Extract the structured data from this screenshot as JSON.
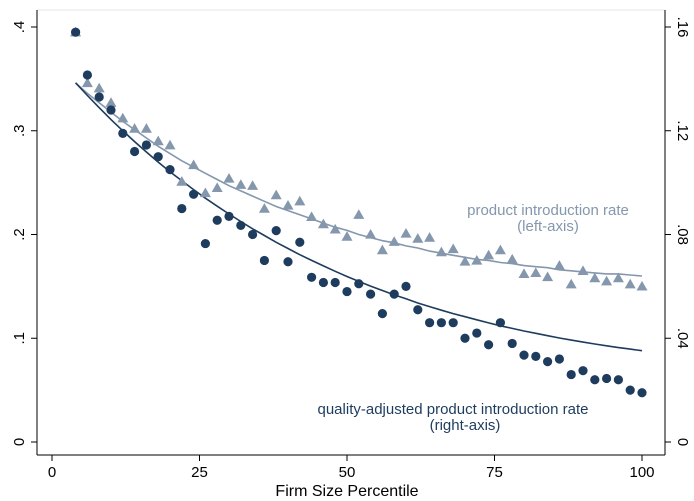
{
  "chart_data": {
    "type": "scatter",
    "xlabel": "Firm Size Percentile",
    "xlim": [
      0,
      100
    ],
    "xticks": [
      0,
      25,
      50,
      75,
      100
    ],
    "ylim_left": [
      0,
      0.4
    ],
    "yticks_left": [
      0,
      0.1,
      0.2,
      0.3,
      0.4
    ],
    "ytick_labels_left": [
      "0",
      ".1",
      ".2",
      ".3",
      ".4"
    ],
    "ylim_right": [
      0,
      0.16
    ],
    "yticks_right": [
      0,
      0.04,
      0.08,
      0.12,
      0.16
    ],
    "ytick_labels_right": [
      "0",
      ".04",
      ".08",
      ".12",
      ".16"
    ],
    "grid": false,
    "series": [
      {
        "axis": "left",
        "marker": "triangle",
        "color": "#8497ad",
        "annotation": [
          "product introduction rate",
          "(left-axis)"
        ],
        "x": [
          4,
          6,
          8,
          10,
          12,
          14,
          16,
          18,
          20,
          22,
          24,
          26,
          28,
          30,
          32,
          34,
          36,
          38,
          40,
          42,
          44,
          46,
          48,
          50,
          52,
          54,
          56,
          58,
          60,
          62,
          64,
          66,
          68,
          70,
          72,
          74,
          76,
          78,
          80,
          82,
          84,
          86,
          88,
          90,
          92,
          94,
          96,
          98,
          100
        ],
        "values": [
          0.395,
          0.346,
          0.341,
          0.327,
          0.312,
          0.302,
          0.302,
          0.29,
          0.286,
          0.251,
          0.267,
          0.24,
          0.245,
          0.254,
          0.248,
          0.247,
          0.225,
          0.238,
          0.228,
          0.232,
          0.217,
          0.21,
          0.205,
          0.198,
          0.219,
          0.2,
          0.185,
          0.193,
          0.201,
          0.196,
          0.197,
          0.183,
          0.186,
          0.174,
          0.175,
          0.18,
          0.185,
          0.176,
          0.162,
          0.163,
          0.159,
          0.17,
          0.152,
          0.165,
          0.158,
          0.155,
          0.158,
          0.152,
          0.15
        ],
        "fit": [
          0.346,
          0.336,
          0.327,
          0.318,
          0.309,
          0.301,
          0.293,
          0.285,
          0.278,
          0.271,
          0.265,
          0.259,
          0.253,
          0.247,
          0.242,
          0.237,
          0.232,
          0.227,
          0.223,
          0.219,
          0.215,
          0.211,
          0.207,
          0.204,
          0.2,
          0.197,
          0.194,
          0.192,
          0.189,
          0.187,
          0.184,
          0.182,
          0.18,
          0.178,
          0.176,
          0.175,
          0.173,
          0.172,
          0.17,
          0.169,
          0.168,
          0.166,
          0.165,
          0.164,
          0.163,
          0.162,
          0.162,
          0.161,
          0.16
        ]
      },
      {
        "axis": "right",
        "marker": "circle",
        "color": "#1e3c5e",
        "annotation": [
          "quality-adjusted product introduction rate",
          "(right-axis)"
        ],
        "x": [
          4,
          6,
          8,
          10,
          12,
          14,
          16,
          18,
          20,
          22,
          24,
          26,
          28,
          30,
          32,
          34,
          36,
          38,
          40,
          42,
          44,
          46,
          48,
          50,
          52,
          54,
          56,
          58,
          60,
          62,
          64,
          66,
          68,
          70,
          72,
          74,
          76,
          78,
          80,
          82,
          84,
          86,
          88,
          90,
          92,
          94,
          96,
          98,
          100
        ],
        "values": [
          0.158,
          0.1415,
          0.133,
          0.128,
          0.119,
          0.112,
          0.1145,
          0.11,
          0.105,
          0.09,
          0.0955,
          0.0765,
          0.0855,
          0.087,
          0.0835,
          0.08,
          0.07,
          0.0815,
          0.0695,
          0.077,
          0.0635,
          0.0615,
          0.0615,
          0.058,
          0.061,
          0.057,
          0.0495,
          0.057,
          0.06,
          0.051,
          0.046,
          0.046,
          0.046,
          0.04,
          0.042,
          0.0375,
          0.046,
          0.038,
          0.0335,
          0.033,
          0.031,
          0.032,
          0.026,
          0.0275,
          0.024,
          0.0245,
          0.024,
          0.02,
          0.019
        ],
        "fit": [
          0.1385,
          0.1336,
          0.1289,
          0.1243,
          0.12,
          0.1158,
          0.1118,
          0.1079,
          0.1042,
          0.1007,
          0.0973,
          0.094,
          0.0909,
          0.0879,
          0.085,
          0.0822,
          0.0796,
          0.077,
          0.0746,
          0.0722,
          0.07,
          0.0679,
          0.0658,
          0.0638,
          0.0619,
          0.0601,
          0.0584,
          0.0567,
          0.0552,
          0.0536,
          0.0522,
          0.0508,
          0.0495,
          0.0483,
          0.0471,
          0.0459,
          0.0448,
          0.0438,
          0.0428,
          0.0419,
          0.041,
          0.0401,
          0.0393,
          0.0385,
          0.0378,
          0.0371,
          0.0364,
          0.0358,
          0.0352
        ]
      }
    ]
  }
}
